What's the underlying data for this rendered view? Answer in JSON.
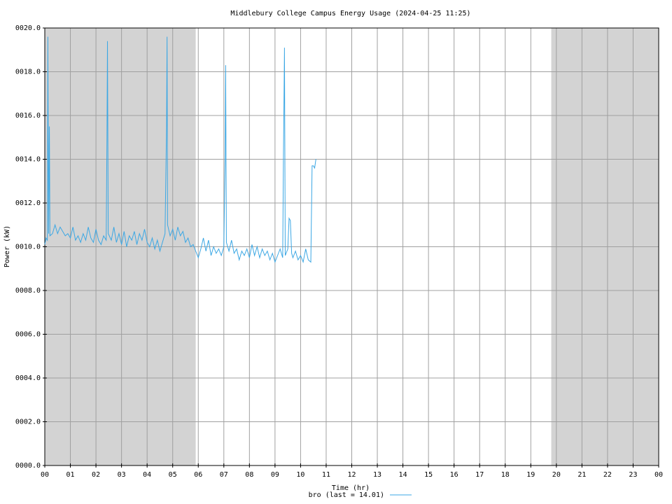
{
  "chart_data": {
    "type": "line",
    "title": "Middlebury College Campus Energy Usage (2024-04-25 11:25)",
    "xlabel": "Time (hr)",
    "ylabel": "Power (kW)",
    "xlim": [
      0,
      24
    ],
    "ylim": [
      0,
      20
    ],
    "xticks": [
      {
        "value": 0,
        "label": "00"
      },
      {
        "value": 1,
        "label": "01"
      },
      {
        "value": 2,
        "label": "02"
      },
      {
        "value": 3,
        "label": "03"
      },
      {
        "value": 4,
        "label": "04"
      },
      {
        "value": 5,
        "label": "05"
      },
      {
        "value": 6,
        "label": "06"
      },
      {
        "value": 7,
        "label": "07"
      },
      {
        "value": 8,
        "label": "08"
      },
      {
        "value": 9,
        "label": "09"
      },
      {
        "value": 10,
        "label": "10"
      },
      {
        "value": 11,
        "label": "11"
      },
      {
        "value": 12,
        "label": "12"
      },
      {
        "value": 13,
        "label": "13"
      },
      {
        "value": 14,
        "label": "14"
      },
      {
        "value": 15,
        "label": "15"
      },
      {
        "value": 16,
        "label": "16"
      },
      {
        "value": 17,
        "label": "17"
      },
      {
        "value": 18,
        "label": "18"
      },
      {
        "value": 19,
        "label": "19"
      },
      {
        "value": 20,
        "label": "20"
      },
      {
        "value": 21,
        "label": "21"
      },
      {
        "value": 22,
        "label": "22"
      },
      {
        "value": 23,
        "label": "23"
      },
      {
        "value": 24,
        "label": "00"
      }
    ],
    "yticks": [
      {
        "value": 0,
        "label": "0000.0"
      },
      {
        "value": 2,
        "label": "0002.0"
      },
      {
        "value": 4,
        "label": "0004.0"
      },
      {
        "value": 6,
        "label": "0006.0"
      },
      {
        "value": 8,
        "label": "0008.0"
      },
      {
        "value": 10,
        "label": "0010.0"
      },
      {
        "value": 12,
        "label": "0012.0"
      },
      {
        "value": 14,
        "label": "0014.0"
      },
      {
        "value": 16,
        "label": "0016.0"
      },
      {
        "value": 18,
        "label": "0018.0"
      },
      {
        "value": 20,
        "label": "0020.0"
      }
    ],
    "grid": true,
    "shaded_ranges": [
      [
        0,
        5.9
      ],
      [
        19.8,
        24
      ]
    ],
    "shade_color": "#d3d3d3",
    "x": [
      0,
      0.05,
      0.1,
      0.12,
      0.15,
      0.18,
      0.2,
      0.3,
      0.4,
      0.5,
      0.6,
      0.7,
      0.8,
      0.9,
      1.0,
      1.1,
      1.2,
      1.3,
      1.4,
      1.5,
      1.6,
      1.7,
      1.8,
      1.9,
      2.0,
      2.1,
      2.2,
      2.3,
      2.4,
      2.43,
      2.45,
      2.48,
      2.6,
      2.7,
      2.8,
      2.9,
      3.0,
      3.1,
      3.2,
      3.3,
      3.4,
      3.5,
      3.6,
      3.7,
      3.8,
      3.9,
      4.0,
      4.1,
      4.2,
      4.3,
      4.4,
      4.5,
      4.6,
      4.7,
      4.76,
      4.78,
      4.8,
      4.9,
      5.0,
      5.1,
      5.2,
      5.3,
      5.4,
      5.5,
      5.6,
      5.7,
      5.8,
      5.9,
      6.0,
      6.1,
      6.2,
      6.3,
      6.4,
      6.5,
      6.6,
      6.7,
      6.8,
      6.9,
      7.0,
      7.05,
      7.07,
      7.1,
      7.2,
      7.3,
      7.4,
      7.5,
      7.6,
      7.7,
      7.8,
      7.9,
      8.0,
      8.1,
      8.2,
      8.3,
      8.4,
      8.5,
      8.6,
      8.7,
      8.8,
      8.9,
      9.0,
      9.1,
      9.2,
      9.3,
      9.33,
      9.37,
      9.4,
      9.5,
      9.55,
      9.6,
      9.65,
      9.7,
      9.8,
      9.9,
      10.0,
      10.1,
      10.2,
      10.3,
      10.4,
      10.45,
      10.5,
      10.55,
      10.6
    ],
    "series": [
      {
        "name": "bro (last = 14.01)",
        "color": "#3ba7e4",
        "values": [
          10.1,
          10.4,
          10.3,
          19.6,
          10.6,
          15.5,
          10.5,
          10.6,
          11.0,
          10.6,
          10.9,
          10.7,
          10.5,
          10.6,
          10.4,
          10.9,
          10.3,
          10.5,
          10.2,
          10.6,
          10.3,
          10.9,
          10.4,
          10.2,
          10.8,
          10.3,
          10.1,
          10.5,
          10.3,
          14.9,
          19.4,
          10.6,
          10.3,
          10.9,
          10.2,
          10.6,
          10.1,
          10.7,
          10.0,
          10.5,
          10.3,
          10.7,
          10.1,
          10.6,
          10.3,
          10.8,
          10.2,
          10.0,
          10.4,
          9.9,
          10.3,
          9.8,
          10.2,
          10.6,
          15.5,
          19.6,
          11.0,
          10.5,
          10.8,
          10.3,
          10.9,
          10.5,
          10.7,
          10.2,
          10.4,
          10.0,
          10.1,
          9.8,
          9.5,
          9.9,
          10.4,
          9.8,
          10.3,
          9.6,
          10.0,
          9.7,
          9.9,
          9.6,
          10.0,
          14.2,
          18.3,
          10.2,
          9.8,
          10.3,
          9.7,
          9.9,
          9.4,
          9.8,
          9.6,
          9.9,
          9.5,
          10.1,
          9.6,
          10.0,
          9.5,
          9.9,
          9.6,
          9.8,
          9.4,
          9.7,
          9.3,
          9.6,
          9.9,
          9.5,
          14.1,
          19.1,
          9.6,
          9.9,
          11.3,
          11.2,
          9.7,
          9.5,
          9.8,
          9.4,
          9.6,
          9.3,
          9.9,
          9.4,
          9.3,
          13.7,
          13.7,
          13.6,
          14.01
        ]
      }
    ]
  }
}
